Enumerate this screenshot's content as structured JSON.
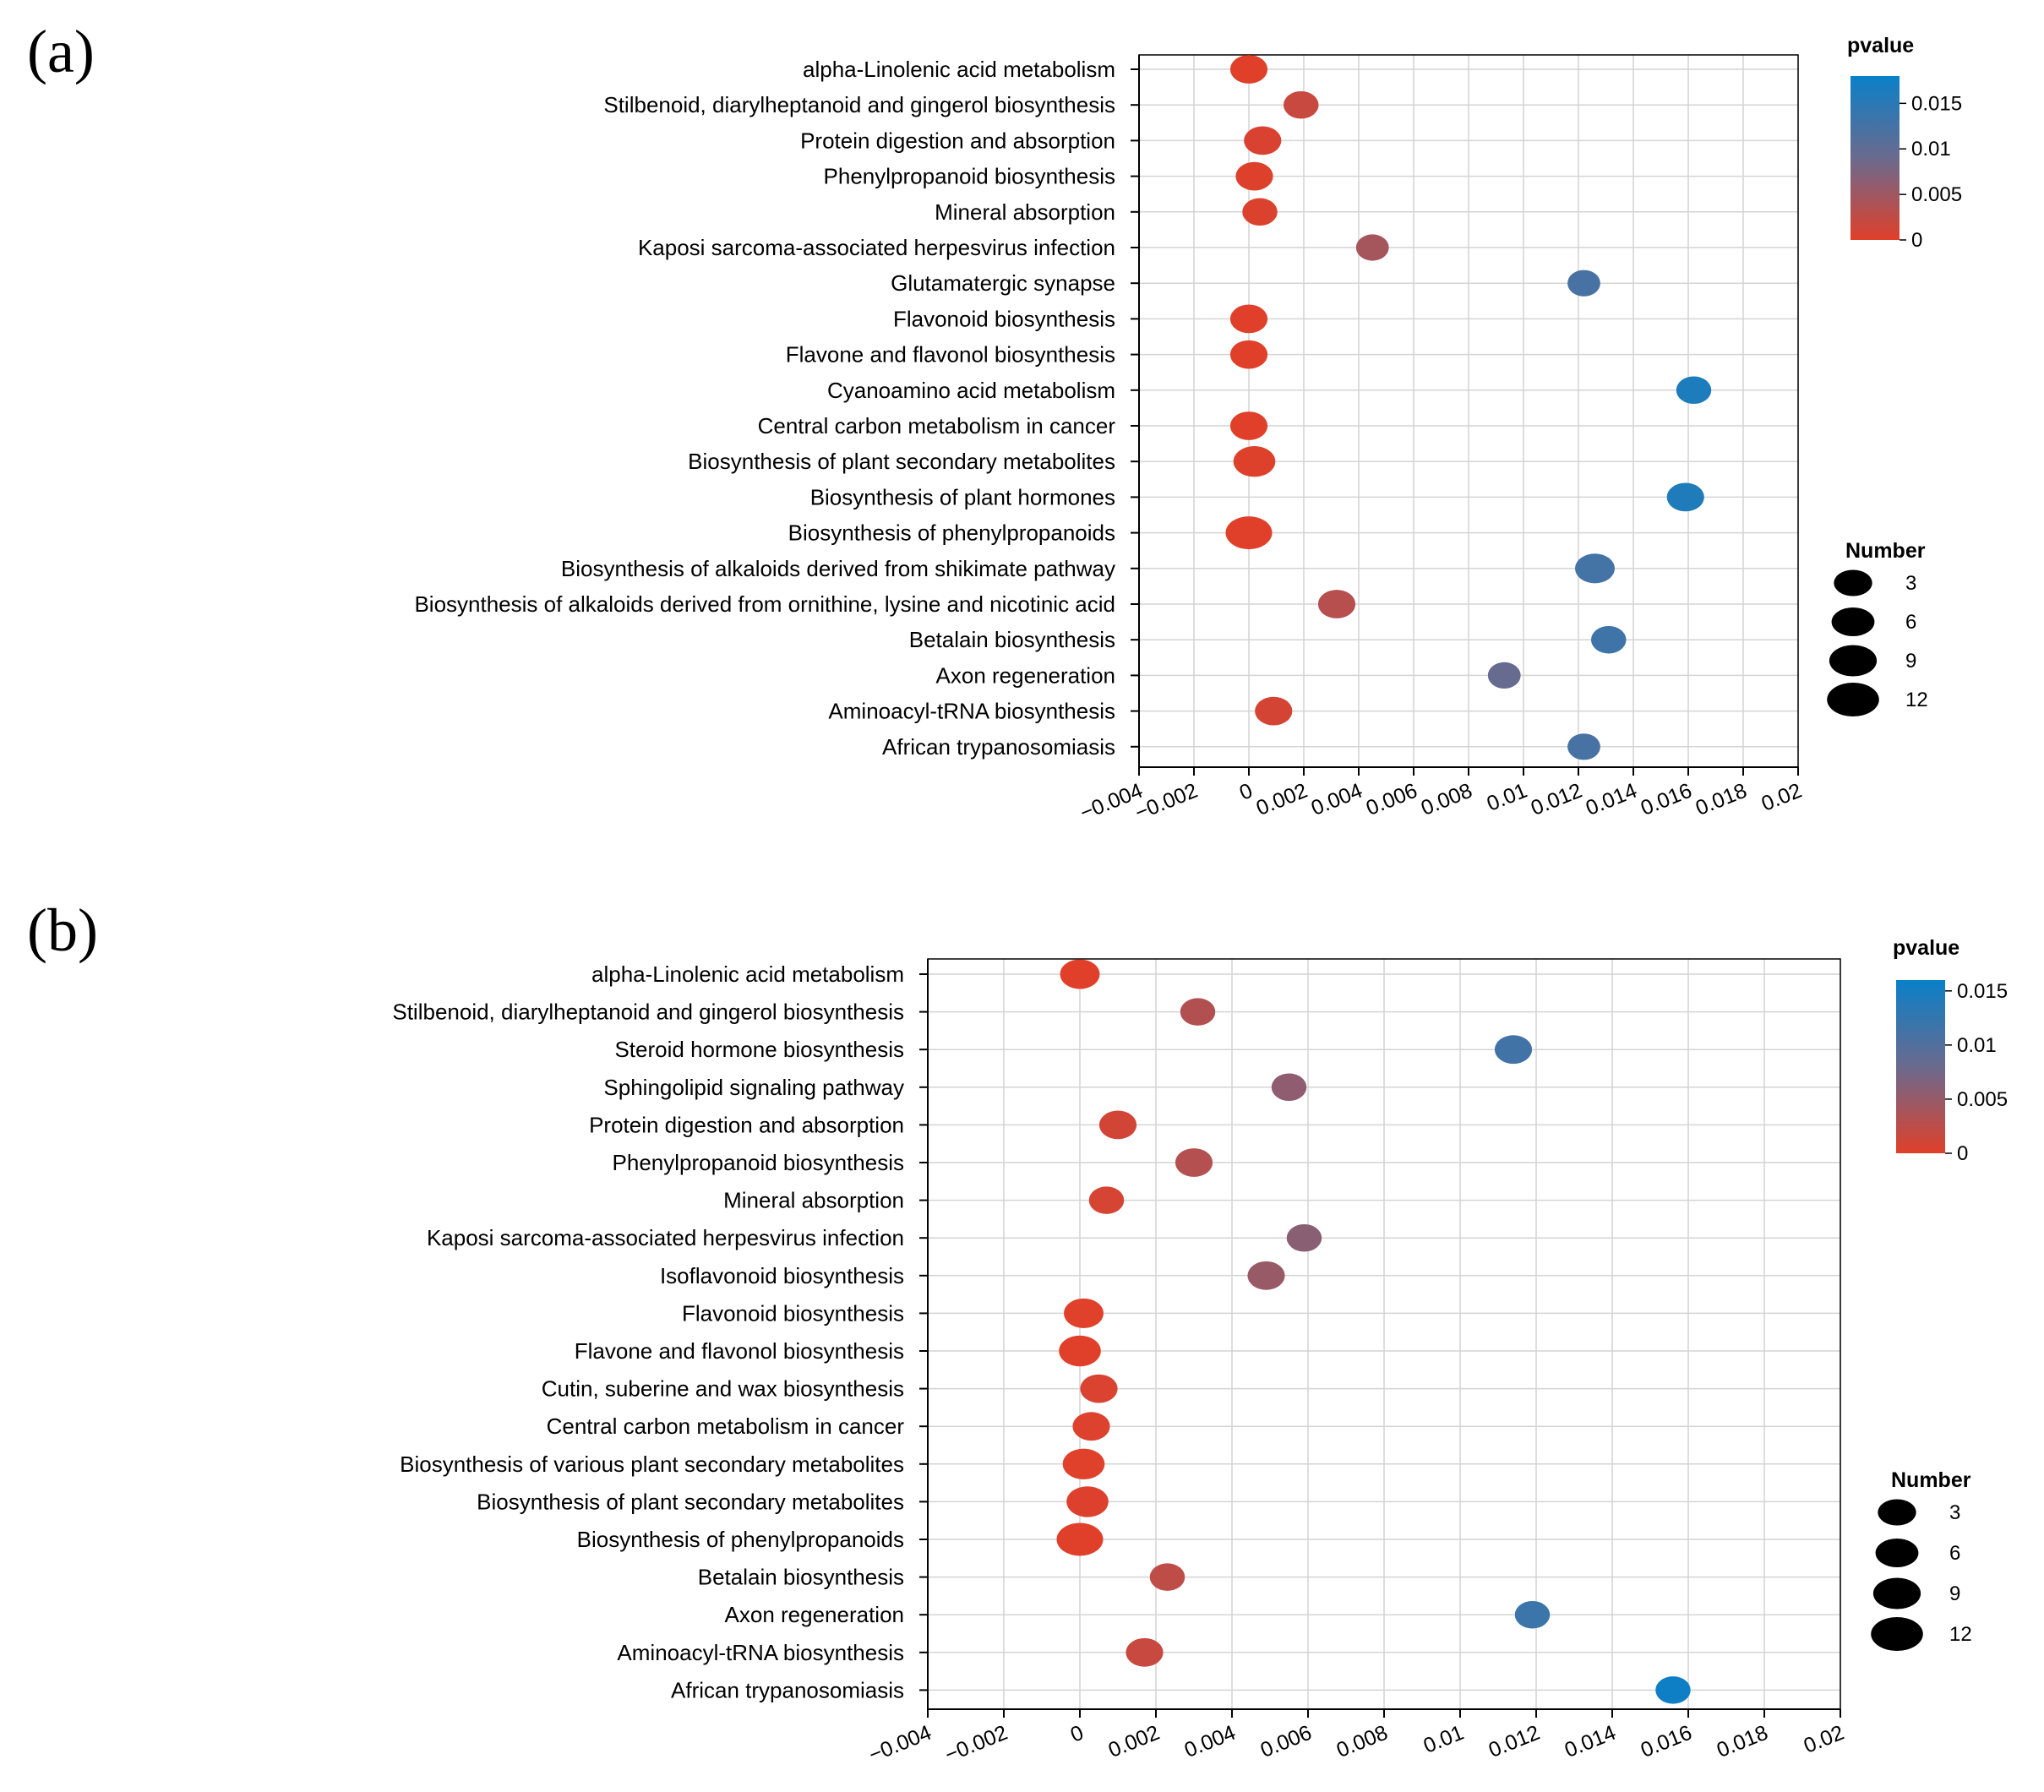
{
  "chart_data": [
    {
      "label": "(a)",
      "type": "scatter",
      "xlabel": "",
      "ylabel": "",
      "xlim": [
        -0.004,
        0.02
      ],
      "x_ticks": [
        -0.004,
        -0.002,
        0,
        0.002,
        0.004,
        0.006,
        0.008,
        0.01,
        0.012,
        0.014,
        0.016,
        0.018,
        0.02
      ],
      "x_tick_labels": [
        "−0.004",
        "−0.002",
        "0",
        "0.002",
        "0.004",
        "0.006",
        "0.008",
        "0.01",
        "0.012",
        "0.014",
        "0.016",
        "0.018",
        "0.02"
      ],
      "grid": true,
      "color_legend": {
        "title": "pvalue",
        "range": [
          0,
          0.018
        ],
        "ticks": [
          0,
          0.005,
          0.01,
          0.015
        ],
        "tick_labels": [
          "0",
          "0.005",
          "0.01",
          "0.015"
        ],
        "low_color": "#e0402a",
        "mid_color": "#6a6a8e",
        "high_color": "#0a80c8"
      },
      "size_legend": {
        "title": "Number",
        "values": [
          3,
          6,
          9,
          12
        ],
        "labels": [
          "3",
          "6",
          "9",
          "12"
        ]
      },
      "points": [
        {
          "category": "alpha-Linolenic acid metabolism",
          "x": 0.0,
          "pvalue": 0.0,
          "number": 6
        },
        {
          "category": "Stilbenoid, diarylheptanoid and gingerol biosynthesis",
          "x": 0.0019,
          "pvalue": 0.0019,
          "number": 5
        },
        {
          "category": "Protein digestion and absorption",
          "x": 0.0005,
          "pvalue": 0.0005,
          "number": 6
        },
        {
          "category": "Phenylpropanoid biosynthesis",
          "x": 0.0002,
          "pvalue": 0.0002,
          "number": 6
        },
        {
          "category": "Mineral absorption",
          "x": 0.0004,
          "pvalue": 0.0004,
          "number": 5
        },
        {
          "category": "Kaposi sarcoma-associated herpesvirus infection",
          "x": 0.0045,
          "pvalue": 0.0045,
          "number": 4
        },
        {
          "category": "Glutamatergic synapse",
          "x": 0.0122,
          "pvalue": 0.0122,
          "number": 4
        },
        {
          "category": "Flavonoid biosynthesis",
          "x": 0.0,
          "pvalue": 0.0,
          "number": 6
        },
        {
          "category": "Flavone and flavonol biosynthesis",
          "x": 0.0,
          "pvalue": 0.0,
          "number": 6
        },
        {
          "category": "Cyanoamino acid metabolism",
          "x": 0.0162,
          "pvalue": 0.0162,
          "number": 5
        },
        {
          "category": "Central carbon metabolism in cancer",
          "x": 0.0,
          "pvalue": 0.0,
          "number": 6
        },
        {
          "category": "Biosynthesis of plant secondary metabolites",
          "x": 0.0002,
          "pvalue": 0.0002,
          "number": 8
        },
        {
          "category": "Biosynthesis of plant hormones",
          "x": 0.0159,
          "pvalue": 0.0159,
          "number": 6
        },
        {
          "category": "Biosynthesis of phenylpropanoids",
          "x": 0.0,
          "pvalue": 0.0,
          "number": 10
        },
        {
          "category": "Biosynthesis of alkaloids derived from shikimate pathway",
          "x": 0.0126,
          "pvalue": 0.0126,
          "number": 7
        },
        {
          "category": "Biosynthesis of alkaloids derived from ornithine, lysine and nicotinic acid",
          "x": 0.0032,
          "pvalue": 0.0032,
          "number": 6
        },
        {
          "category": "Betalain biosynthesis",
          "x": 0.0131,
          "pvalue": 0.0131,
          "number": 5
        },
        {
          "category": "Axon regeneration",
          "x": 0.0093,
          "pvalue": 0.0093,
          "number": 4
        },
        {
          "category": "Aminoacyl-tRNA biosynthesis",
          "x": 0.0009,
          "pvalue": 0.0009,
          "number": 6
        },
        {
          "category": "African trypanosomiasis",
          "x": 0.0122,
          "pvalue": 0.0122,
          "number": 4
        }
      ]
    },
    {
      "label": "(b)",
      "type": "scatter",
      "xlabel": "",
      "ylabel": "",
      "xlim": [
        -0.004,
        0.02
      ],
      "x_ticks": [
        -0.004,
        -0.002,
        0,
        0.002,
        0.004,
        0.006,
        0.008,
        0.01,
        0.012,
        0.014,
        0.016,
        0.018,
        0.02
      ],
      "x_tick_labels": [
        "−0.004",
        "−0.002",
        "0",
        "0.002",
        "0.004",
        "0.006",
        "0.008",
        "0.01",
        "0.012",
        "0.014",
        "0.016",
        "0.018",
        "0.02"
      ],
      "grid": true,
      "color_legend": {
        "title": "pvalue",
        "range": [
          0,
          0.016
        ],
        "ticks": [
          0,
          0.005,
          0.01,
          0.015
        ],
        "tick_labels": [
          "0",
          "0.005",
          "0.01",
          "0.015"
        ],
        "low_color": "#e0402a",
        "mid_color": "#6a6a8e",
        "high_color": "#0a80c8"
      },
      "size_legend": {
        "title": "Number",
        "values": [
          3,
          6,
          9,
          12
        ],
        "labels": [
          "3",
          "6",
          "9",
          "12"
        ]
      },
      "points": [
        {
          "category": "alpha-Linolenic acid metabolism",
          "x": 0.0,
          "pvalue": 0.0,
          "number": 7
        },
        {
          "category": "Stilbenoid, diarylheptanoid and gingerol biosynthesis",
          "x": 0.0031,
          "pvalue": 0.0031,
          "number": 5
        },
        {
          "category": "Steroid hormone biosynthesis",
          "x": 0.0114,
          "pvalue": 0.0114,
          "number": 6
        },
        {
          "category": "Sphingolipid signaling pathway",
          "x": 0.0055,
          "pvalue": 0.0055,
          "number": 5
        },
        {
          "category": "Protein digestion and absorption",
          "x": 0.001,
          "pvalue": 0.001,
          "number": 6
        },
        {
          "category": "Phenylpropanoid biosynthesis",
          "x": 0.003,
          "pvalue": 0.003,
          "number": 6
        },
        {
          "category": "Mineral absorption",
          "x": 0.0007,
          "pvalue": 0.0007,
          "number": 5
        },
        {
          "category": "Kaposi sarcoma-associated herpesvirus infection",
          "x": 0.0059,
          "pvalue": 0.0059,
          "number": 5
        },
        {
          "category": "Isoflavonoid biosynthesis",
          "x": 0.0049,
          "pvalue": 0.0049,
          "number": 6
        },
        {
          "category": "Flavonoid biosynthesis",
          "x": 0.0001,
          "pvalue": 0.0001,
          "number": 7
        },
        {
          "category": "Flavone and flavonol biosynthesis",
          "x": 0.0,
          "pvalue": 0.0,
          "number": 8
        },
        {
          "category": "Cutin, suberine and wax biosynthesis",
          "x": 0.0005,
          "pvalue": 0.0005,
          "number": 6
        },
        {
          "category": "Central carbon metabolism in cancer",
          "x": 0.0003,
          "pvalue": 0.0003,
          "number": 6
        },
        {
          "category": "Biosynthesis of various plant secondary metabolites",
          "x": 0.0001,
          "pvalue": 0.0001,
          "number": 8
        },
        {
          "category": "Biosynthesis of plant secondary metabolites",
          "x": 0.0002,
          "pvalue": 0.0002,
          "number": 8
        },
        {
          "category": "Biosynthesis of phenylpropanoids",
          "x": 0.0,
          "pvalue": 0.0,
          "number": 10
        },
        {
          "category": "Betalain biosynthesis",
          "x": 0.0023,
          "pvalue": 0.0023,
          "number": 5
        },
        {
          "category": "Axon regeneration",
          "x": 0.0119,
          "pvalue": 0.0119,
          "number": 5
        },
        {
          "category": "Aminoacyl-tRNA biosynthesis",
          "x": 0.0017,
          "pvalue": 0.0017,
          "number": 6
        },
        {
          "category": "African trypanosomiasis",
          "x": 0.0156,
          "pvalue": 0.0156,
          "number": 5
        }
      ]
    }
  ]
}
